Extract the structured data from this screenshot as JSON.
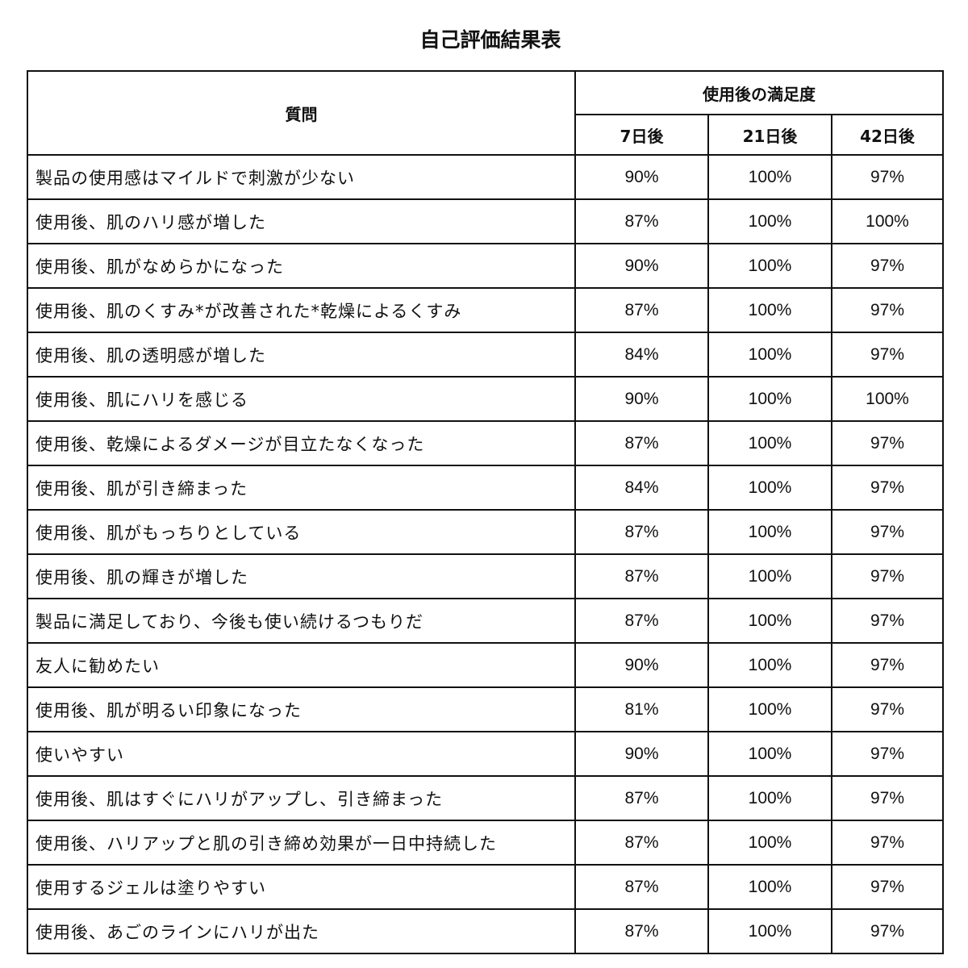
{
  "title": "自己評価結果表",
  "header": {
    "question": "質問",
    "group": "使用後の満足度",
    "periods": [
      "7日後",
      "21日後",
      "42日後"
    ]
  },
  "rows": [
    {
      "q": "製品の使用感はマイルドで刺激が少ない",
      "v": [
        "90%",
        "100%",
        "97%"
      ]
    },
    {
      "q": "使用後、肌のハリ感が増した",
      "v": [
        "87%",
        "100%",
        "100%"
      ]
    },
    {
      "q": "使用後、肌がなめらかになった",
      "v": [
        "90%",
        "100%",
        "97%"
      ]
    },
    {
      "q": "使用後、肌のくすみ*が改善された*乾燥によるくすみ",
      "v": [
        "87%",
        "100%",
        "97%"
      ]
    },
    {
      "q": "使用後、肌の透明感が増した",
      "v": [
        "84%",
        "100%",
        "97%"
      ]
    },
    {
      "q": "使用後、肌にハリを感じる",
      "v": [
        "90%",
        "100%",
        "100%"
      ]
    },
    {
      "q": "使用後、乾燥によるダメージが目立たなくなった",
      "v": [
        "87%",
        "100%",
        "97%"
      ]
    },
    {
      "q": "使用後、肌が引き締まった",
      "v": [
        "84%",
        "100%",
        "97%"
      ]
    },
    {
      "q": "使用後、肌がもっちりとしている",
      "v": [
        "87%",
        "100%",
        "97%"
      ]
    },
    {
      "q": "使用後、肌の輝きが増した",
      "v": [
        "87%",
        "100%",
        "97%"
      ]
    },
    {
      "q": "製品に満足しており、今後も使い続けるつもりだ",
      "v": [
        "87%",
        "100%",
        "97%"
      ]
    },
    {
      "q": "友人に勧めたい",
      "v": [
        "90%",
        "100%",
        "97%"
      ]
    },
    {
      "q": "使用後、肌が明るい印象になった",
      "v": [
        "81%",
        "100%",
        "97%"
      ]
    },
    {
      "q": "使いやすい",
      "v": [
        "90%",
        "100%",
        "97%"
      ]
    },
    {
      "q": "使用後、肌はすぐにハリがアップし、引き締まった",
      "v": [
        "87%",
        "100%",
        "97%"
      ]
    },
    {
      "q": "使用後、ハリアップと肌の引き締め効果が一日中持続した",
      "v": [
        "87%",
        "100%",
        "97%"
      ]
    },
    {
      "q": "使用するジェルは塗りやすい",
      "v": [
        "87%",
        "100%",
        "97%"
      ]
    },
    {
      "q": "使用後、あごのラインにハリが出た",
      "v": [
        "87%",
        "100%",
        "97%"
      ]
    }
  ]
}
